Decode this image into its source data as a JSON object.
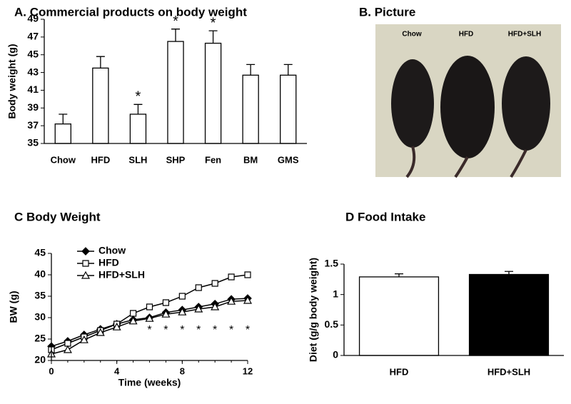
{
  "chart_data": [
    {
      "type": "bar",
      "title": "A. Commercial products on body weight",
      "ylabel": "Body weight (g)",
      "categories": [
        "Chow",
        "HFD",
        "SLH",
        "SHP",
        "Fen",
        "BM",
        "GMS"
      ],
      "values": [
        37.2,
        43.5,
        38.3,
        46.5,
        46.3,
        42.7,
        42.7
      ],
      "errors": [
        1.1,
        1.3,
        1.1,
        1.4,
        1.4,
        1.2,
        1.2
      ],
      "colors": [
        "#ffffff",
        "#ffffff",
        "#ffffff",
        "#ffffff",
        "#ffffff",
        "#ffffff",
        "#ffffff"
      ],
      "ylim": [
        35,
        49
      ],
      "yticks": [
        35,
        37,
        39,
        41,
        43,
        45,
        47,
        49
      ],
      "annotations": [
        {
          "text": "*",
          "category": "SLH"
        },
        {
          "text": "*",
          "category": "SHP"
        },
        {
          "text": "*",
          "category": "Fen"
        }
      ]
    },
    {
      "type": "line",
      "title": "C  Body Weight",
      "xlabel": "Time (weeks)",
      "ylabel": "BW (g)",
      "x": [
        0,
        1,
        2,
        3,
        4,
        5,
        6,
        7,
        8,
        9,
        10,
        11,
        12
      ],
      "series": [
        {
          "name": "Chow",
          "color": "#000000",
          "marker": "diamond",
          "marker_fill": "#000000",
          "values": [
            23.3,
            24.5,
            26,
            27.3,
            28.5,
            29.5,
            30,
            31.2,
            31.8,
            32.5,
            33.2,
            34.3,
            34.5
          ]
        },
        {
          "name": "HFD",
          "color": "#000000",
          "marker": "square",
          "marker_fill": "#ffffff",
          "values": [
            22.5,
            24,
            25.5,
            27,
            28.5,
            31,
            32.5,
            33.5,
            35,
            37,
            38,
            39.5,
            40
          ]
        },
        {
          "name": "HFD+SLH",
          "color": "#000000",
          "marker": "triangle",
          "marker_fill": "#ffffff",
          "values": [
            21.5,
            22.5,
            24.8,
            26.5,
            27.8,
            29.2,
            29.8,
            30.8,
            31.3,
            32,
            32.5,
            33.8,
            34
          ]
        }
      ],
      "xlim": [
        0,
        12
      ],
      "xticks": [
        0,
        4,
        8,
        12
      ],
      "ylim": [
        20,
        45
      ],
      "yticks": [
        20,
        25,
        30,
        35,
        40,
        45
      ],
      "legend": "upper left",
      "annotations": [
        {
          "text": "*",
          "x": 6,
          "y": 27
        },
        {
          "text": "*",
          "x": 7,
          "y": 27
        },
        {
          "text": "*",
          "x": 8,
          "y": 27
        },
        {
          "text": "*",
          "x": 9,
          "y": 27
        },
        {
          "text": "*",
          "x": 10,
          "y": 27
        },
        {
          "text": "*",
          "x": 11,
          "y": 27
        },
        {
          "text": "*",
          "x": 12,
          "y": 27
        }
      ]
    },
    {
      "type": "bar",
      "title": "D  Food Intake",
      "ylabel": "Diet (g/g body weight)",
      "categories": [
        "HFD",
        "HFD+SLH"
      ],
      "values": [
        1.29,
        1.33
      ],
      "errors": [
        0.05,
        0.05
      ],
      "colors": [
        "#ffffff",
        "#000000"
      ],
      "ylim": [
        0,
        1.5
      ],
      "yticks": [
        0,
        0.5,
        1,
        1.5
      ]
    }
  ],
  "picture": {
    "title": "B.  Picture",
    "labels": [
      "Chow",
      "HFD",
      "HFD+SLH"
    ]
  }
}
